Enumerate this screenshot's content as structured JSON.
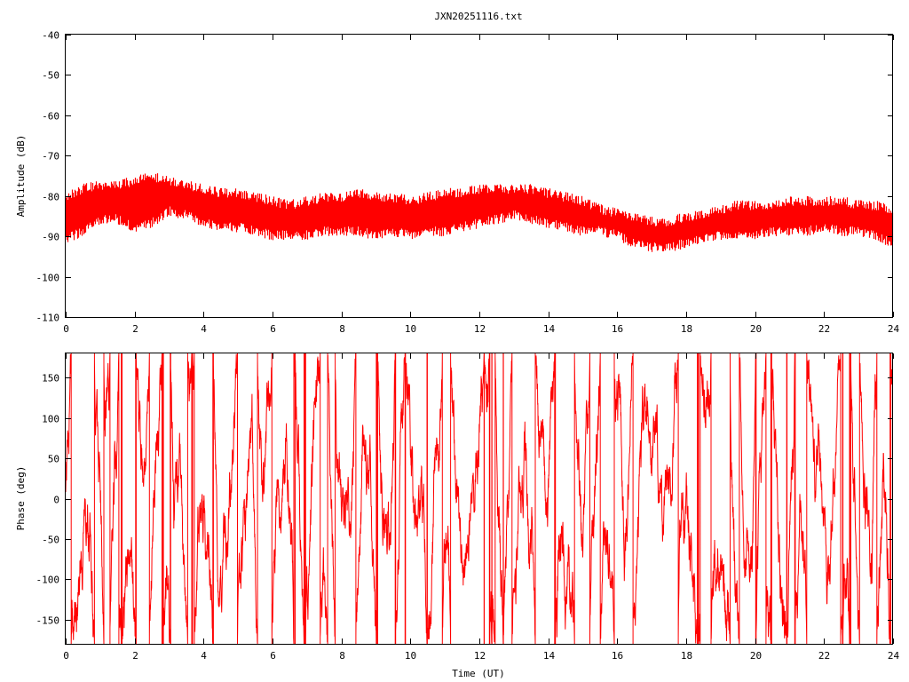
{
  "chart_data": {
    "title": "JXN20251116.txt",
    "type": "line",
    "line_color": "#ff0000",
    "panels": [
      {
        "id": "amplitude",
        "ylabel": "Amplitude (dB)",
        "xlabel": "",
        "xlim": [
          0,
          24
        ],
        "ylim": [
          -110,
          -40
        ],
        "x_ticks": [
          "0",
          "2",
          "4",
          "6",
          "8",
          "10",
          "12",
          "14",
          "16",
          "18",
          "20",
          "22",
          "24"
        ],
        "y_ticks": [
          "-40",
          "-50",
          "-60",
          "-70",
          "-80",
          "-90",
          "-100",
          "-110"
        ],
        "y_tick_values": [
          -40,
          -50,
          -60,
          -70,
          -80,
          -90,
          -100,
          -110
        ],
        "envelope": {
          "x": [
            0,
            0.5,
            1,
            1.5,
            2,
            2.5,
            3,
            3.5,
            4,
            4.5,
            5,
            5.5,
            6,
            6.5,
            7,
            7.5,
            8,
            8.5,
            9,
            9.5,
            10,
            10.5,
            11,
            11.5,
            12,
            12.5,
            13,
            13.5,
            14,
            14.5,
            15,
            15.5,
            16,
            16.5,
            17,
            17.5,
            18,
            18.5,
            19,
            19.5,
            20,
            20.5,
            21,
            21.5,
            22,
            22.5,
            23,
            23.5,
            24
          ],
          "upper": [
            -79,
            -77,
            -76,
            -76,
            -75,
            -74,
            -75,
            -76,
            -77,
            -78,
            -78,
            -79,
            -80,
            -81,
            -80,
            -79,
            -79,
            -78,
            -79,
            -79,
            -80,
            -79,
            -78,
            -78,
            -77,
            -77,
            -77,
            -77,
            -78,
            -79,
            -80,
            -82,
            -83,
            -84,
            -85,
            -85,
            -84,
            -83,
            -82,
            -81,
            -81,
            -81,
            -80,
            -80,
            -80,
            -80,
            -81,
            -81,
            -82
          ],
          "lower": [
            -92,
            -90,
            -87,
            -87,
            -89,
            -88,
            -85,
            -86,
            -88,
            -89,
            -89,
            -90,
            -91,
            -91,
            -91,
            -90,
            -90,
            -90,
            -91,
            -90,
            -91,
            -90,
            -90,
            -89,
            -88,
            -87,
            -86,
            -87,
            -88,
            -89,
            -90,
            -90,
            -91,
            -93,
            -94,
            -94,
            -93,
            -92,
            -91,
            -91,
            -91,
            -90,
            -90,
            -90,
            -89,
            -90,
            -90,
            -91,
            -93
          ]
        }
      },
      {
        "id": "phase",
        "ylabel": "Phase (deg)",
        "xlabel": "Time (UT)",
        "xlim": [
          0,
          24
        ],
        "ylim": [
          -180,
          180
        ],
        "x_ticks": [
          "0",
          "2",
          "4",
          "6",
          "8",
          "10",
          "12",
          "14",
          "16",
          "18",
          "20",
          "22",
          "24"
        ],
        "y_ticks": [
          "150",
          "100",
          "50",
          "0",
          "-50",
          "-100",
          "-150"
        ],
        "y_tick_values": [
          150,
          100,
          50,
          0,
          -50,
          -100,
          -150
        ],
        "range": [
          -180,
          180
        ]
      }
    ]
  }
}
